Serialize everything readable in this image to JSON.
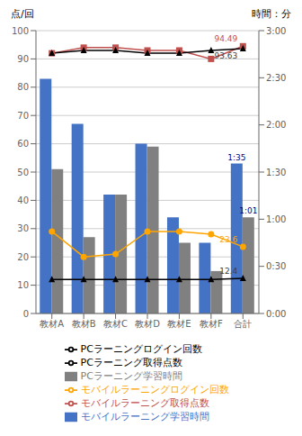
{
  "chart_data": {
    "type": "bar",
    "categories": [
      "教材A",
      "教材B",
      "教材C",
      "教材D",
      "教材E",
      "教材F",
      "合計"
    ],
    "ylabel": "点/回",
    "y2label": "時間：分",
    "ylim": [
      0,
      100
    ],
    "yticks": [
      0,
      10,
      20,
      30,
      40,
      50,
      60,
      70,
      80,
      90,
      100
    ],
    "y2lim": [
      0,
      60
    ],
    "y2ticks": [
      {
        "value": 0,
        "label": "0:00"
      },
      {
        "value": 10,
        "label": "0:30"
      },
      {
        "value": 20,
        "label": "1:00"
      },
      {
        "value": 30,
        "label": "1:30"
      },
      {
        "value": 40,
        "label": "2:00"
      },
      {
        "value": 50,
        "label": "2:30"
      },
      {
        "value": 60,
        "label": "3:00"
      }
    ],
    "grid": true,
    "legend": "bottom",
    "series": [
      {
        "name": "モバイルラーニング学習時間",
        "type": "bar",
        "color": "#4472C4",
        "values": [
          83,
          67,
          42,
          60,
          34,
          25,
          53
        ]
      },
      {
        "name": "PCラーニング学習時間",
        "type": "bar",
        "color": "#808080",
        "values": [
          51,
          27,
          42,
          59,
          25,
          15,
          34
        ]
      },
      {
        "name": "モバイルラーニング取得点数",
        "type": "line",
        "color": "#C0504D",
        "marker": "square",
        "values": [
          92,
          94,
          94,
          93,
          93,
          90,
          94.49
        ]
      },
      {
        "name": "PCラーニング取得点数",
        "type": "line",
        "color": "#000000",
        "marker": "triangle",
        "values": [
          92,
          93,
          93,
          92,
          92,
          93,
          93.63
        ]
      },
      {
        "name": "モバイルラーニングログイン回数",
        "type": "line",
        "color": "#FFA500",
        "marker": "circle",
        "values": [
          29,
          20,
          21,
          29,
          29,
          28,
          23.6
        ]
      },
      {
        "name": "PCラーニングログイン回数",
        "type": "line",
        "color": "#000000",
        "marker": "triangle",
        "values": [
          12,
          12,
          12,
          12,
          12,
          12,
          12.4
        ]
      }
    ],
    "annotations": [
      {
        "text": "94.49",
        "series": "モバイルラーニング取得点数",
        "category": "合計",
        "color": "#C0504D"
      },
      {
        "text": "93.63",
        "series": "PCラーニング取得点数",
        "category": "合計",
        "color": "#404040"
      },
      {
        "text": "1:35",
        "series": "モバイルラーニング学習時間",
        "category": "合計",
        "color": "#000080"
      },
      {
        "text": "1:01",
        "series": "PCラーニング学習時間",
        "category": "合計",
        "color": "#000080"
      },
      {
        "text": "23.6",
        "series": "モバイルラーニングログイン回数",
        "category": "合計",
        "color": "#FFA500"
      },
      {
        "text": "12.4",
        "series": "PCラーニングログイン回数",
        "category": "合計",
        "color": "#404040"
      }
    ]
  }
}
